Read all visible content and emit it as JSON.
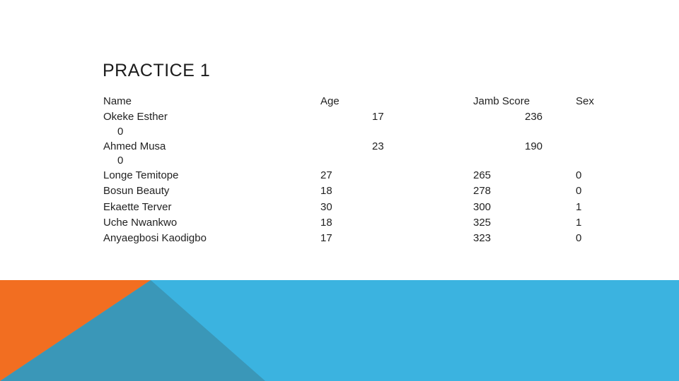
{
  "slide": {
    "title": "PRACTICE 1",
    "accent_colors": {
      "orange": "#F26E21",
      "blue": "#3BB3E0",
      "teal": "#3A97B8"
    }
  },
  "table": {
    "headers": {
      "name": "Name",
      "age": "Age",
      "jamb": "Jamb Score",
      "sex": "Sex"
    },
    "wrapped_rows": [
      {
        "name": "Okeke Esther",
        "name_overflow": "0",
        "age": "17",
        "jamb": "236"
      },
      {
        "name": "Ahmed Musa",
        "name_overflow": "0",
        "age": "23",
        "jamb": "190"
      }
    ],
    "rows": [
      {
        "name": "Longe Temitope",
        "age": "27",
        "jamb": "265",
        "sex": "0"
      },
      {
        "name": "Bosun Beauty",
        "age": "18",
        "jamb": "278",
        "sex": "0"
      },
      {
        "name": "Ekaette Terver",
        "age": "30",
        "jamb": "300",
        "sex": "1"
      },
      {
        "name": "Uche Nwankwo",
        "age": "18",
        "jamb": "325",
        "sex": "1"
      },
      {
        "name": "Anyaegbosi Kaodigbo",
        "age": "17",
        "jamb": "323",
        "sex": "0"
      }
    ]
  }
}
